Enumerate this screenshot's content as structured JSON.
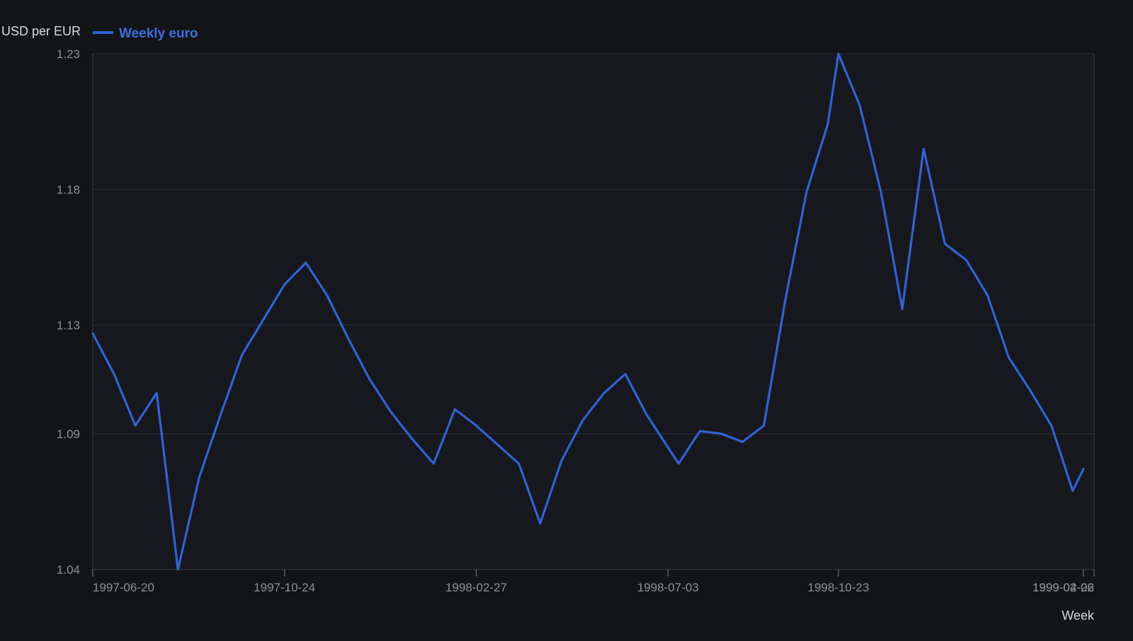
{
  "chart_data": {
    "type": "line",
    "ylabel": "USD per EUR",
    "xlabel": "Week",
    "ylim": [
      1.04,
      1.23
    ],
    "yticks": [
      "1.04",
      "1.09",
      "1.13",
      "1.18",
      "1.23"
    ],
    "xticks": [
      {
        "label": "1997-06-20",
        "week": 0
      },
      {
        "label": "1997-10-24",
        "week": 18
      },
      {
        "label": "1998-02-27",
        "week": 36
      },
      {
        "label": "1998-07-03",
        "week": 54
      },
      {
        "label": "1998-10-23",
        "week": 70
      },
      {
        "label": "1999-04-26",
        "week": 104
      },
      {
        "label": "1999-02-02",
        "week": 93
      }
    ],
    "grid": true,
    "legend_position": "top-left",
    "colors": {
      "background": "#121418",
      "plot_background": "#16181d",
      "series": "#2f62d6"
    },
    "series": [
      {
        "name": "Weekly euro",
        "x_weeks": [
          0,
          2,
          4,
          6,
          8,
          10,
          12,
          14,
          16,
          18,
          20,
          22,
          24,
          26,
          28,
          30,
          32,
          34,
          36,
          38,
          40,
          42,
          44,
          46,
          48,
          50,
          52,
          54,
          55,
          57,
          59,
          61,
          63,
          65,
          67,
          69,
          70,
          72,
          74,
          76,
          78,
          80,
          82,
          84,
          86,
          88,
          90,
          92,
          93
        ],
        "values": [
          1.127,
          1.112,
          1.093,
          1.105,
          1.04,
          1.074,
          1.097,
          1.119,
          1.132,
          1.145,
          1.153,
          1.141,
          1.125,
          1.11,
          1.098,
          1.088,
          1.079,
          1.099,
          1.093,
          1.086,
          1.079,
          1.057,
          1.08,
          1.095,
          1.105,
          1.112,
          1.097,
          1.085,
          1.079,
          1.091,
          1.09,
          1.087,
          1.093,
          1.139,
          1.179,
          1.204,
          1.23,
          1.211,
          1.179,
          1.136,
          1.195,
          1.16,
          1.154,
          1.141,
          1.118,
          1.106,
          1.093,
          1.069,
          1.077
        ]
      }
    ]
  }
}
